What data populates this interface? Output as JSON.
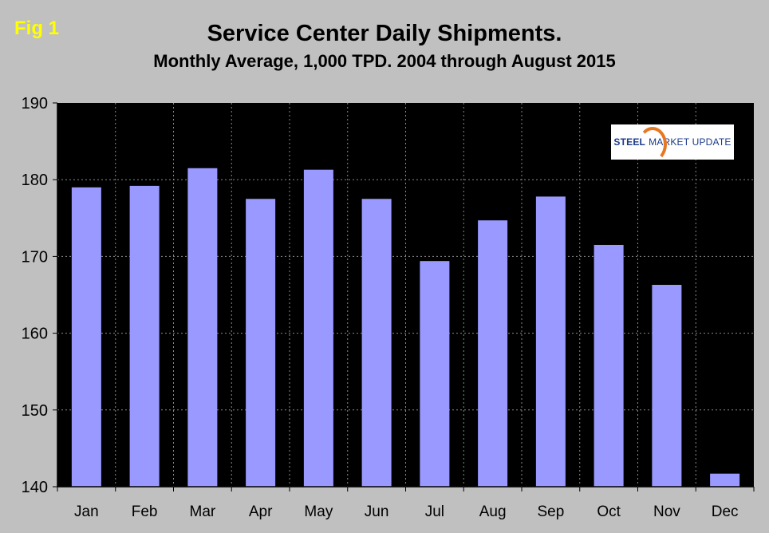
{
  "figure_label": "Fig 1",
  "logo": {
    "word1": "STEEL",
    "word2": "MARKET UPDATE"
  },
  "colors": {
    "background": "#c0c0c0",
    "plot_area": "#000000",
    "bar": "#9999ff",
    "fig_label": "#ffff00"
  },
  "chart_data": {
    "type": "bar",
    "title": "Service Center Daily Shipments.",
    "subtitle": "Monthly Average, 1,000 TPD.  2004 through August 2015",
    "xlabel": "",
    "ylabel": "",
    "categories": [
      "Jan",
      "Feb",
      "Mar",
      "Apr",
      "May",
      "Jun",
      "Jul",
      "Aug",
      "Sep",
      "Oct",
      "Nov",
      "Dec"
    ],
    "values": [
      179.0,
      179.2,
      181.5,
      177.5,
      181.3,
      177.5,
      169.4,
      174.7,
      177.8,
      171.5,
      166.3,
      141.7
    ],
    "ylim": [
      140,
      190
    ],
    "yticks": [
      140,
      150,
      160,
      170,
      180,
      190
    ],
    "grid": true
  }
}
